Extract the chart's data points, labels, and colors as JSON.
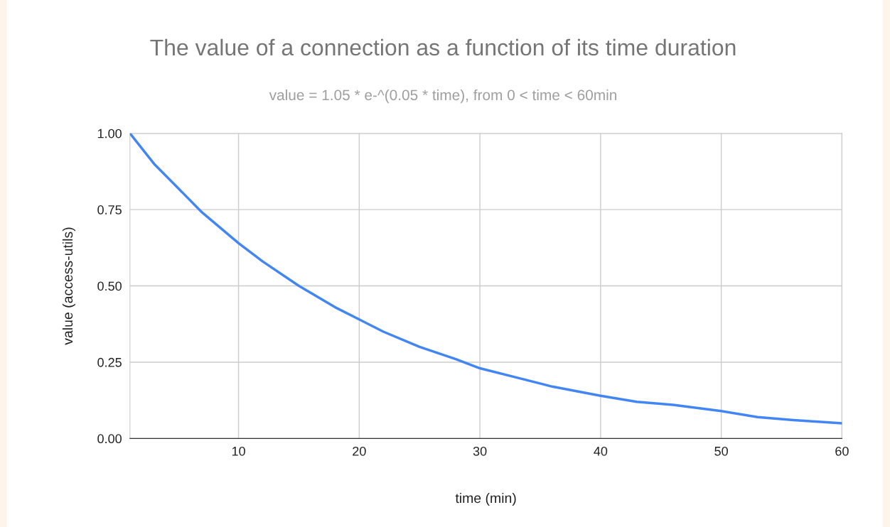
{
  "chart_data": {
    "type": "line",
    "title": "The value of a connection as a function of its time duration",
    "subtitle": "value = 1.05 * e-^(0.05 * time), from 0 < time < 60min",
    "xlabel": "time (min)",
    "ylabel": "value (access-utils)",
    "x": [
      1,
      3,
      5,
      7,
      10,
      12,
      15,
      18,
      20,
      22,
      25,
      28,
      30,
      33,
      36,
      40,
      43,
      46,
      50,
      53,
      56,
      60
    ],
    "series": [
      {
        "color": "#4285f4",
        "values": [
          1.0,
          0.9,
          0.82,
          0.74,
          0.64,
          0.58,
          0.5,
          0.43,
          0.39,
          0.35,
          0.3,
          0.26,
          0.23,
          0.2,
          0.17,
          0.14,
          0.12,
          0.11,
          0.09,
          0.07,
          0.06,
          0.05
        ]
      }
    ],
    "xlim": [
      1,
      60
    ],
    "xticks": [
      10,
      20,
      30,
      40,
      50,
      60
    ],
    "ylim": [
      0,
      1
    ],
    "yticks": [
      {
        "value": 0,
        "label": "0.00"
      },
      {
        "value": 0.25,
        "label": "0.25"
      },
      {
        "value": 0.5,
        "label": "0.50"
      },
      {
        "value": 0.75,
        "label": "0.75"
      },
      {
        "value": 1,
        "label": "1.00"
      }
    ],
    "grid": true,
    "legend": false,
    "marker": "none",
    "line_style": "solid"
  }
}
